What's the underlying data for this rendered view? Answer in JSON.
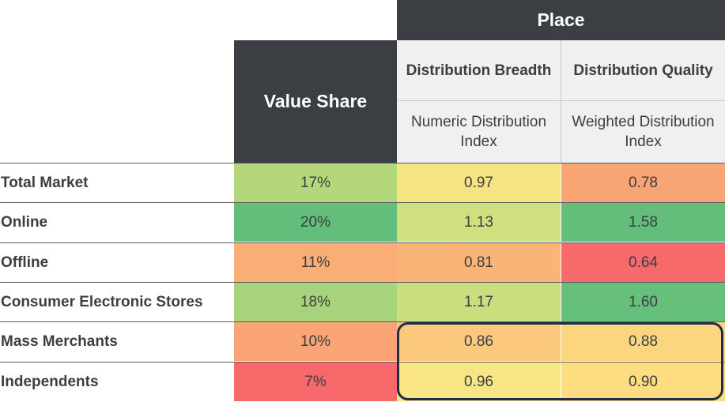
{
  "header": {
    "place": "Place",
    "value_share": "Value Share",
    "distribution_breadth": "Distribution Breadth",
    "distribution_quality": "Distribution Quality",
    "numeric_distribution_index": "Numeric Distribution Index",
    "weighted_distribution_index": "Weighted Distribution Index"
  },
  "rows": [
    {
      "label": "Total Market",
      "value_share": "17%",
      "numeric": "0.97",
      "weighted": "0.78"
    },
    {
      "label": "Online",
      "value_share": "20%",
      "numeric": "1.13",
      "weighted": "1.58"
    },
    {
      "label": "Offline",
      "value_share": "11%",
      "numeric": "0.81",
      "weighted": "0.64"
    },
    {
      "label": "Consumer Electronic Stores",
      "value_share": "18%",
      "numeric": "1.17",
      "weighted": "1.60"
    },
    {
      "label": "Mass Merchants",
      "value_share": "10%",
      "numeric": "0.86",
      "weighted": "0.88"
    },
    {
      "label": "Independents",
      "value_share": "7%",
      "numeric": "0.96",
      "weighted": "0.90"
    }
  ],
  "cell_colors": [
    [
      "#b5d77c",
      "#f5e482",
      "#f8a474"
    ],
    [
      "#63be7b",
      "#cfe07f",
      "#63be7b"
    ],
    [
      "#fbad76",
      "#fbb477",
      "#f8696b"
    ],
    [
      "#a8d37d",
      "#c9de7f",
      "#66bf7b"
    ],
    [
      "#fba475",
      "#fcc87b",
      "#fcd57f"
    ],
    [
      "#f8696b",
      "#f7e683",
      "#fedc80"
    ]
  ],
  "chart_data": {
    "type": "table",
    "columns": [
      "Value Share",
      "Numeric Distribution Index",
      "Weighted Distribution Index"
    ],
    "rows": [
      "Total Market",
      "Online",
      "Offline",
      "Consumer Electronic Stores",
      "Mass Merchants",
      "Independents"
    ],
    "values": [
      [
        "17%",
        0.97,
        0.78
      ],
      [
        "20%",
        1.13,
        1.58
      ],
      [
        "11%",
        0.81,
        0.64
      ],
      [
        "18%",
        1.17,
        1.6
      ],
      [
        "10%",
        0.86,
        0.88
      ],
      [
        "7%",
        0.96,
        0.9
      ]
    ]
  }
}
